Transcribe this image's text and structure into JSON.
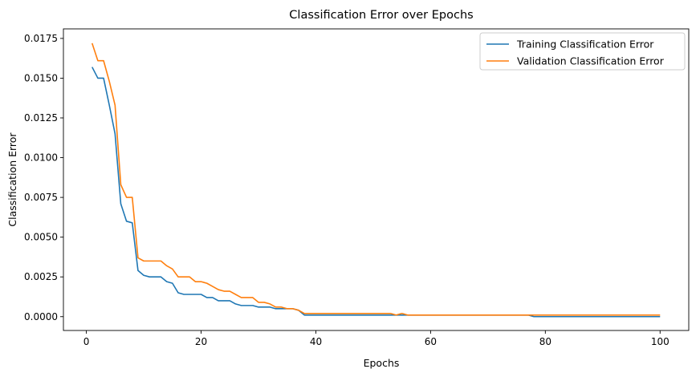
{
  "chart_data": {
    "type": "line",
    "title": "Classification Error over Epochs",
    "xlabel": "Epochs",
    "ylabel": "Classification Error",
    "xlim": [
      -4,
      105
    ],
    "ylim": [
      -0.00087,
      0.0181
    ],
    "x_ticks": [
      0,
      20,
      40,
      60,
      80,
      100
    ],
    "x_tick_labels": [
      "0",
      "20",
      "40",
      "60",
      "80",
      "100"
    ],
    "y_ticks": [
      0.0,
      0.0025,
      0.005,
      0.0075,
      0.01,
      0.0125,
      0.015,
      0.0175
    ],
    "y_tick_labels": [
      "0.0000",
      "0.0025",
      "0.0050",
      "0.0075",
      "0.0100",
      "0.0125",
      "0.0150",
      "0.0175"
    ],
    "grid": false,
    "legend_position": "top-right",
    "x": [
      1,
      2,
      3,
      4,
      5,
      6,
      7,
      8,
      9,
      10,
      11,
      12,
      13,
      14,
      15,
      16,
      17,
      18,
      19,
      20,
      21,
      22,
      23,
      24,
      25,
      26,
      27,
      28,
      29,
      30,
      31,
      32,
      33,
      34,
      35,
      36,
      37,
      38,
      39,
      40,
      41,
      42,
      43,
      44,
      45,
      46,
      47,
      48,
      49,
      50,
      51,
      52,
      53,
      54,
      55,
      56,
      57,
      58,
      59,
      60,
      61,
      62,
      63,
      64,
      65,
      66,
      67,
      68,
      69,
      70,
      71,
      72,
      73,
      74,
      75,
      76,
      77,
      78,
      79,
      80,
      81,
      82,
      83,
      84,
      85,
      86,
      87,
      88,
      89,
      90,
      91,
      92,
      93,
      94,
      95,
      96,
      97,
      98,
      99,
      100
    ],
    "series": [
      {
        "name": "Training Classification Error",
        "color": "#1f77b4",
        "values": [
          0.0157,
          0.015,
          0.015,
          0.0133,
          0.0115,
          0.0071,
          0.006,
          0.0059,
          0.0029,
          0.0026,
          0.0025,
          0.0025,
          0.0025,
          0.0022,
          0.0021,
          0.0015,
          0.0014,
          0.0014,
          0.0014,
          0.0014,
          0.0012,
          0.0012,
          0.001,
          0.001,
          0.001,
          0.0008,
          0.0007,
          0.0007,
          0.0007,
          0.0006,
          0.0006,
          0.0006,
          0.0005,
          0.0005,
          0.0005,
          0.0005,
          0.0004,
          0.0001,
          0.0001,
          0.0001,
          0.0001,
          0.0001,
          0.0001,
          0.0001,
          0.0001,
          0.0001,
          0.0001,
          0.0001,
          0.0001,
          0.0001,
          0.0001,
          0.0001,
          0.0001,
          0.0001,
          0.0001,
          0.0001,
          0.0001,
          0.0001,
          0.0001,
          0.0001,
          0.0001,
          0.0001,
          0.0001,
          0.0001,
          0.0001,
          0.0001,
          0.0001,
          0.0001,
          0.0001,
          0.0001,
          0.0001,
          0.0001,
          0.0001,
          0.0001,
          0.0001,
          0.0001,
          0.0001,
          0.0,
          0.0,
          0.0,
          0.0,
          0.0,
          0.0,
          0.0,
          0.0,
          0.0,
          0.0,
          0.0,
          0.0,
          0.0,
          0.0,
          0.0,
          0.0,
          0.0,
          0.0,
          0.0,
          0.0,
          0.0,
          0.0,
          0.0
        ]
      },
      {
        "name": "Validation Classification Error",
        "color": "#ff7f0e",
        "values": [
          0.0172,
          0.0161,
          0.0161,
          0.0148,
          0.0133,
          0.0083,
          0.0075,
          0.0075,
          0.0037,
          0.0035,
          0.0035,
          0.0035,
          0.0035,
          0.0032,
          0.003,
          0.0025,
          0.0025,
          0.0025,
          0.0022,
          0.0022,
          0.0021,
          0.0019,
          0.0017,
          0.0016,
          0.0016,
          0.0014,
          0.0012,
          0.0012,
          0.0012,
          0.0009,
          0.0009,
          0.0008,
          0.0006,
          0.0006,
          0.0005,
          0.0005,
          0.0004,
          0.0002,
          0.0002,
          0.0002,
          0.0002,
          0.0002,
          0.0002,
          0.0002,
          0.0002,
          0.0002,
          0.0002,
          0.0002,
          0.0002,
          0.0002,
          0.0002,
          0.0002,
          0.0002,
          0.0001,
          0.0002,
          0.0001,
          0.0001,
          0.0001,
          0.0001,
          0.0001,
          0.0001,
          0.0001,
          0.0001,
          0.0001,
          0.0001,
          0.0001,
          0.0001,
          0.0001,
          0.0001,
          0.0001,
          0.0001,
          0.0001,
          0.0001,
          0.0001,
          0.0001,
          0.0001,
          0.0001,
          0.0001,
          0.0001,
          0.0001,
          0.0001,
          0.0001,
          0.0001,
          0.0001,
          0.0001,
          0.0001,
          0.0001,
          0.0001,
          0.0001,
          0.0001,
          0.0001,
          0.0001,
          0.0001,
          0.0001,
          0.0001,
          0.0001,
          0.0001,
          0.0001,
          0.0001,
          0.0001
        ]
      }
    ]
  }
}
